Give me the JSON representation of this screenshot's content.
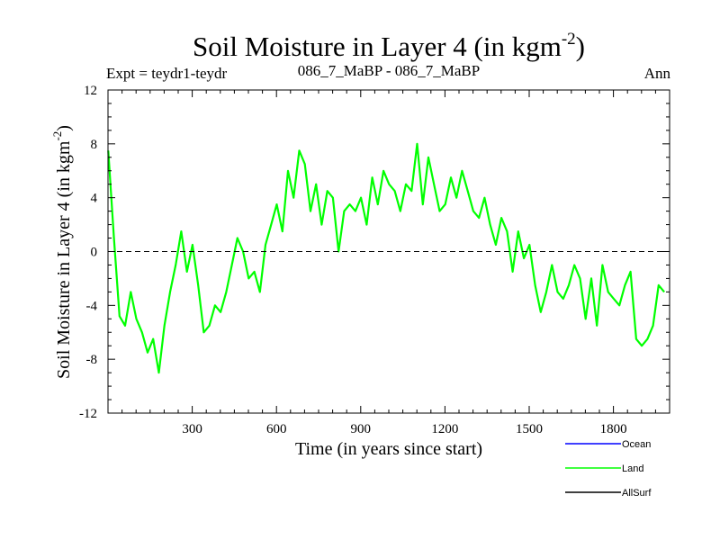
{
  "chart_data": {
    "type": "line",
    "title": "Soil Moisture in Layer 4 (in kgm",
    "title_superscript": "-2",
    "title_close": ")",
    "subtitle_left": "Expt = teydr1-teydr",
    "subtitle_center": "086_7_MaBP - 086_7_MaBP",
    "subtitle_right": "Ann",
    "xlabel": "Time (in years since start)",
    "ylabel": "Soil Moisture in Layer 4 (in kgm",
    "ylabel_superscript": "-2",
    "ylabel_close": ")",
    "xlim": [
      0,
      2000
    ],
    "ylim": [
      -12,
      12
    ],
    "xticks": [
      300,
      600,
      900,
      1200,
      1500,
      1800
    ],
    "yticks": [
      12,
      8,
      4,
      0,
      -4,
      -8,
      -12
    ],
    "xtick_labels": [
      "300",
      "600",
      "900",
      "1200",
      "1500",
      "1800"
    ],
    "ytick_labels": [
      "12",
      "8",
      "4",
      "0",
      "-4",
      "-8",
      "-12"
    ],
    "zero_line": true,
    "legend_position": "bottom-right, below plot",
    "series": [
      {
        "name": "Ocean",
        "color": "#0000ff",
        "values": []
      },
      {
        "name": "Land",
        "color": "#00ff00",
        "x_start": 1,
        "x_step": 20,
        "values": [
          7.5,
          1.0,
          -4.8,
          -5.5,
          -3.0,
          -5.0,
          -6.0,
          -7.5,
          -6.5,
          -9.0,
          -5.5,
          -3.0,
          -1.0,
          1.5,
          -1.5,
          0.5,
          -2.5,
          -6.0,
          -5.5,
          -4.0,
          -4.5,
          -3.0,
          -1.0,
          1.0,
          0.0,
          -2.0,
          -1.5,
          -3.0,
          0.5,
          2.0,
          3.5,
          1.5,
          6.0,
          4.0,
          7.5,
          6.5,
          3.0,
          5.0,
          2.0,
          4.5,
          4.0,
          0.0,
          3.0,
          3.5,
          3.0,
          4.0,
          2.0,
          5.5,
          3.5,
          6.0,
          5.0,
          4.5,
          3.0,
          5.0,
          4.5,
          8.0,
          3.5,
          7.0,
          5.0,
          3.0,
          3.5,
          5.5,
          4.0,
          6.0,
          4.5,
          3.0,
          2.5,
          4.0,
          2.0,
          0.5,
          2.5,
          1.5,
          -1.5,
          1.5,
          -0.5,
          0.5,
          -2.5,
          -4.5,
          -3.0,
          -1.0,
          -3.0,
          -3.5,
          -2.5,
          -1.0,
          -2.0,
          -5.0,
          -2.0,
          -5.5,
          -1.0,
          -3.0,
          -3.5,
          -4.0,
          -2.5,
          -1.5,
          -6.5,
          -7.0,
          -6.5,
          -5.5,
          -2.5,
          -3.0
        ]
      },
      {
        "name": "AllSurf",
        "color": "#000000",
        "values": []
      }
    ]
  }
}
